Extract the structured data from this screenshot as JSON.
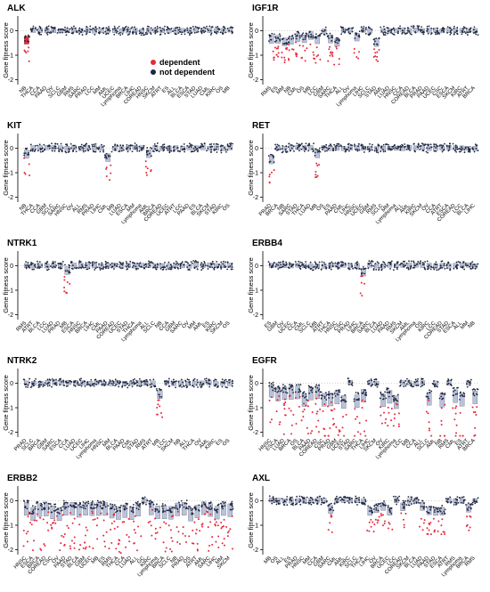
{
  "legend": {
    "items": [
      {
        "label": "dependent",
        "color": "#e8283c"
      },
      {
        "label": "not dependent",
        "color": "#1f2640"
      }
    ],
    "placement": "inside ALK panel, lower right"
  },
  "colors": {
    "dependent": "#e8283c",
    "not_dependent": "#1f2640",
    "box_fill": "#b9c2dc",
    "box_fill_dependent": "#e8283c"
  },
  "chart_data": [
    {
      "type": "scatter",
      "title": "ALK",
      "ylabel": "Gene fitness score",
      "yticks": [
        -2,
        -1,
        0
      ],
      "ylim": [
        -2.2,
        0.6
      ],
      "categories": [
        "NB",
        "THCA",
        "CCA",
        "PAAD",
        "OV",
        "SCLC",
        "GBM",
        "RMS",
        "SARC",
        "PRAD",
        "LCC",
        "MM",
        "AML",
        "UCEC",
        "Lymphoma",
        "BRCA",
        "LIHC",
        "COREAD",
        "HNSC",
        "SKCM",
        "ATRT",
        "ES",
        "ALL",
        "BLCA",
        "ESCA",
        "STAD",
        "LUAD",
        "CML",
        "KIRC",
        "OS",
        "MB"
      ],
      "dependent_categories": [
        "NB"
      ]
    },
    {
      "type": "scatter",
      "title": "IGF1R",
      "ylabel": "Gene fitness score",
      "yticks": [
        -2,
        -1,
        0
      ],
      "ylim": [
        -2.2,
        0.6
      ],
      "categories": [
        "RMS",
        "ES",
        "MM",
        "NB",
        "CML",
        "OS",
        "MB",
        "LCC",
        "GBM",
        "SARC",
        "THCA",
        "ALL",
        "OV",
        "Lymphoma",
        "LIHC",
        "SCLC",
        "STAD",
        "AML",
        "LUAD",
        "HNSC",
        "CCA",
        "COREAD",
        "BLCA",
        "PRAD",
        "PAAD",
        "UCEC",
        "CSC",
        "ESCA",
        "SKCM",
        "KIRC",
        "ATRT",
        "BRCA"
      ],
      "dependent_categories": [
        "RMS",
        "ES",
        "MM",
        "NB",
        "CML",
        "OS",
        "MB",
        "LCC",
        "SARC",
        "THCA",
        "Lymphoma",
        "STAD"
      ]
    },
    {
      "type": "scatter",
      "title": "KIT",
      "ylabel": "Gene fitness score",
      "yticks": [
        -2,
        -1,
        0
      ],
      "ylim": [
        -2.2,
        0.6
      ],
      "categories": [
        "NB",
        "THCA",
        "CCA",
        "GBM",
        "SCLC",
        "SARC",
        "HNSC",
        "OV",
        "ALL",
        "RMS",
        "PRAD",
        "LIHC",
        "CML",
        "MB",
        "LUAD",
        "ESCA",
        "MM",
        "Lymphoma",
        "AML",
        "BRCA",
        "COREAD",
        "UCEC",
        "ATRT",
        "LCC",
        "PAAD",
        "ES",
        "BLCA",
        "SKCM",
        "STAD",
        "KIRC",
        "OS"
      ],
      "dependent_categories": [
        "NB",
        "AML",
        "CML"
      ]
    },
    {
      "type": "scatter",
      "title": "RET",
      "ylabel": "Gene fitness score",
      "yticks": [
        -2,
        -1,
        0
      ],
      "ylim": [
        -2.2,
        0.6
      ],
      "categories": [
        "PRAD",
        "BRCA",
        "NB",
        "SARC",
        "STAD",
        "THCA",
        "LUAD",
        "MB",
        "OS",
        "ES",
        "PAAD",
        "CML",
        "LIHC",
        "HNSC",
        "UCEC",
        "GBM",
        "RMS",
        "SCLC",
        "MM",
        "Lymphoma",
        "ALL",
        "AML",
        "KIRC",
        "SKCM",
        "OV",
        "CCA",
        "ATRT",
        "ESCA",
        "COREAD",
        "LCC",
        "BLCA",
        "LIHC"
      ],
      "dependent_categories": [
        "PRAD",
        "MB"
      ]
    },
    {
      "type": "scatter",
      "title": "NTRK1",
      "ylabel": "Gene fitness score",
      "yticks": [
        -2,
        -1,
        0
      ],
      "ylim": [
        -2.2,
        0.6
      ],
      "categories": [
        "RMS",
        "ATRT",
        "BLCA",
        "LCC",
        "LUAD",
        "PRAD",
        "MB",
        "ESCA",
        "HNSC",
        "BRCA",
        "LIHC",
        "CML",
        "PAAD",
        "COREAD",
        "UCEC",
        "STAD",
        "THCA",
        "Lymphoma",
        "ALL",
        "SCLC",
        "NB",
        "CCA",
        "GBM",
        "SARC",
        "OV",
        "MM",
        "AML",
        "ES",
        "KIRC",
        "SKCM",
        "OS"
      ],
      "dependent_categories": [
        "MB"
      ]
    },
    {
      "type": "scatter",
      "title": "ERBB4",
      "ylabel": "Gene fitness score",
      "yticks": [
        -2,
        -1,
        0
      ],
      "ylim": [
        -2.2,
        0.6
      ],
      "categories": [
        "ES",
        "GBM",
        "OV",
        "UCEC",
        "CCA",
        "CML",
        "SCLC",
        "MB",
        "ATRT",
        "THCA",
        "HNSC",
        "CSC",
        "PRAD",
        "LIHC",
        "BRCA",
        "SARC",
        "BLCA",
        "LUAD",
        "PAAD",
        "RMS",
        "SKCM",
        "AML",
        "Lymphoma",
        "OS",
        "KIRC",
        "LCC",
        "COREAD",
        "STAD",
        "ESCA",
        "ALL",
        "MM",
        "NB"
      ],
      "dependent_categories": [
        "BRCA"
      ]
    },
    {
      "type": "scatter",
      "title": "NTRK2",
      "ylabel": "Gene fitness score",
      "yticks": [
        -2,
        -1,
        0
      ],
      "ylim": [
        -2.2,
        0.6
      ],
      "categories": [
        "PRAD",
        "SCLC",
        "BRCA",
        "GBM",
        "SARC",
        "ESCA",
        "CCA",
        "LUAD",
        "UCEC",
        "LIHC",
        "Lymphoma",
        "HNSC",
        "MM",
        "BLCA",
        "PAAD",
        "CML",
        "STAD",
        "RMS",
        "ATRT",
        "MB",
        "LCC",
        "SKCM",
        "NB",
        "ALL",
        "THCA",
        "OV",
        "AML",
        "KIRC",
        "ES",
        "OS"
      ],
      "dependent_categories": [
        "MB"
      ]
    },
    {
      "type": "scatter",
      "title": "EGFR",
      "ylabel": "Gene fitness score",
      "yticks": [
        -2,
        -1,
        0
      ],
      "ylim": [
        -2.2,
        0.6
      ],
      "categories": [
        "HNSC",
        "ESCA",
        "LUAD",
        "BRCA",
        "OS",
        "BLCA",
        "PAAD",
        "COREAD",
        "CSC",
        "PRAD",
        "GBM",
        "UCEC",
        "STAD",
        "SARC",
        "THCA",
        "LIHC",
        "SKCM",
        "OV",
        "KIRC",
        "Lymphoma",
        "LCC",
        "MB",
        "CCA",
        "ALL",
        "SCLC",
        "AML",
        "NB",
        "RMS",
        "CML",
        "ES",
        "ATRT",
        "BRCA"
      ],
      "dependent_categories": [
        "HNSC",
        "ESCA",
        "LUAD",
        "BRCA",
        "OS",
        "BLCA",
        "PAAD",
        "COREAD",
        "CSC",
        "PRAD",
        "GBM",
        "UCEC",
        "SARC",
        "THCA",
        "OV",
        "KIRC",
        "Lymphoma",
        "SCLC",
        "NB",
        "CML",
        "ES",
        "BRCA"
      ]
    },
    {
      "type": "scatter",
      "title": "ERBB2",
      "ylabel": "Gene fitness score",
      "yticks": [
        -2,
        -1,
        0
      ],
      "ylim": [
        -2.2,
        0.6
      ],
      "categories": [
        "HNSC",
        "ESCA",
        "BRCA",
        "COREAD",
        "CSC",
        "OV",
        "PAAD",
        "STAD",
        "BLCA",
        "GBM",
        "UCEC",
        "MB",
        "ES",
        "RMS",
        "THCA",
        "CCA",
        "LUAD",
        "ALL",
        "GC",
        "KIRC",
        "Lymphoma",
        "BRCA",
        "SCLC",
        "NB",
        "PRAD",
        "OS",
        "ATRT",
        "AML",
        "SARC",
        "LIHC",
        "MM",
        "SKCM"
      ],
      "dependent_categories": [
        "HNSC",
        "ESCA",
        "BRCA",
        "COREAD",
        "CSC",
        "OV",
        "PAAD",
        "STAD",
        "BLCA",
        "GBM",
        "UCEC",
        "MB",
        "ES",
        "RMS",
        "THCA",
        "CCA",
        "LUAD",
        "ALL",
        "KIRC",
        "Lymphoma",
        "BRCA",
        "SCLC",
        "NB",
        "PRAD",
        "OS",
        "ATRT",
        "AML",
        "SARC",
        "LIHC",
        "MM",
        "SKCM"
      ]
    },
    {
      "type": "scatter",
      "title": "AXL",
      "ylabel": "Gene fitness score",
      "yticks": [
        -2,
        -1,
        0
      ],
      "ylim": [
        -2.2,
        0.6
      ],
      "categories": [
        "MB",
        "OS",
        "ALL",
        "ES",
        "PRAD",
        "HNSC",
        "MM",
        "CCA",
        "GBM",
        "SARC",
        "CML",
        "AML",
        "KIRC",
        "SCLC",
        "THCA",
        "LIHC",
        "OV",
        "BRCA",
        "UCEC",
        "LCC",
        "COREAD",
        "SKCM",
        "BLCA",
        "LUAD",
        "PAAD",
        "STAD",
        "ESCA",
        "ATRT",
        "RMS",
        "Lymphoma",
        "BRCA",
        "RMS"
      ],
      "dependent_categories": [
        "SARC",
        "LIHC",
        "OV",
        "BRCA",
        "UCEC",
        "COREAD",
        "LUAD",
        "PAAD",
        "STAD",
        "ESCA"
      ]
    }
  ]
}
